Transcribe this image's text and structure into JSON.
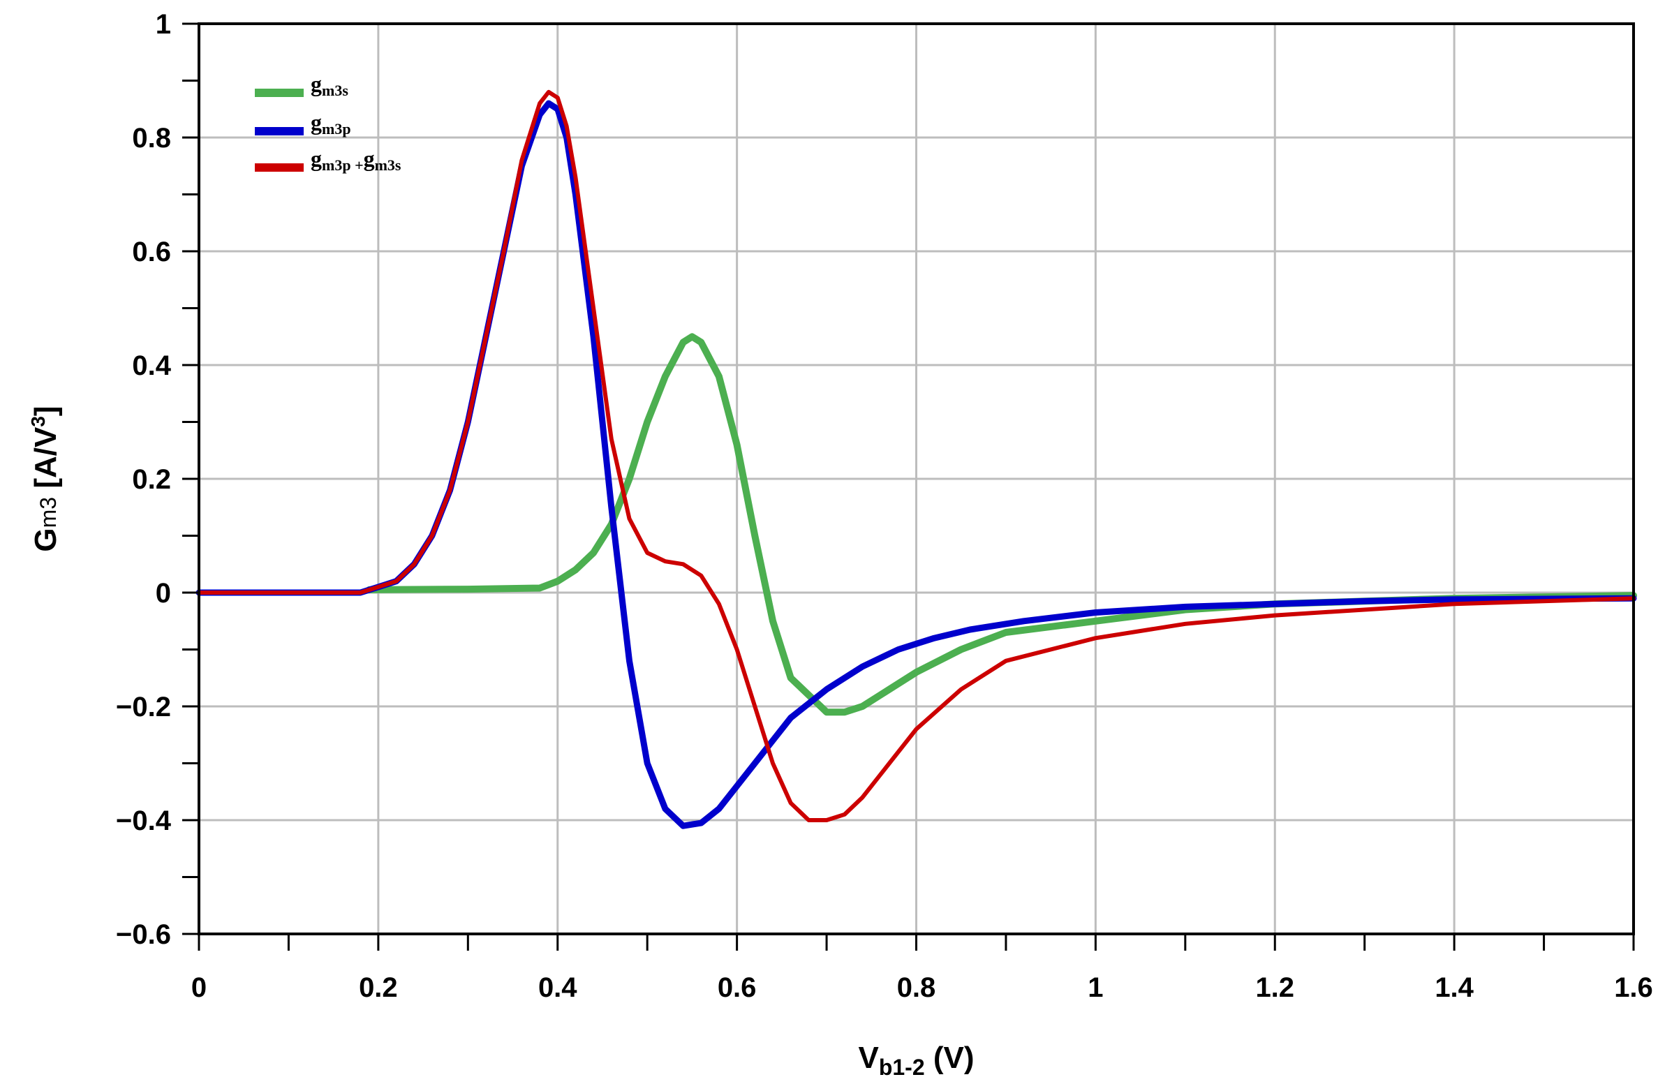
{
  "chart_data": {
    "type": "line",
    "title": "",
    "xlabel": {
      "main": "V",
      "sub": "b1-2",
      "suffix": " (V)"
    },
    "ylabel": {
      "main": "G",
      "sub": "m3",
      "suffix": " [A/V",
      "sup": "3",
      "end": "]"
    },
    "xlim": [
      0,
      1.6
    ],
    "ylim": [
      -0.6,
      1.0
    ],
    "x_ticks": [
      0,
      0.2,
      0.4,
      0.6,
      0.8,
      1.0,
      1.2,
      1.4,
      1.6
    ],
    "x_tick_labels": [
      "0",
      "0.2",
      "0.4",
      "0.6",
      "0.8",
      "1",
      "1.2",
      "1.4",
      "1.6"
    ],
    "y_ticks": [
      -0.6,
      -0.4,
      -0.2,
      0,
      0.2,
      0.4,
      0.6,
      0.8,
      1.0
    ],
    "y_tick_labels": [
      "−0.6",
      "−0.4",
      "−0.2",
      "0",
      "0.2",
      "0.4",
      "0.6",
      "0.8",
      "1"
    ],
    "grid": true,
    "legend_position": "top-left",
    "series": [
      {
        "name": "gm3s",
        "label_main": "g",
        "label_sub": "m3s",
        "color": "#4caf50",
        "x": [
          0.19,
          0.3,
          0.38,
          0.4,
          0.42,
          0.44,
          0.46,
          0.48,
          0.5,
          0.52,
          0.54,
          0.55,
          0.56,
          0.58,
          0.6,
          0.62,
          0.64,
          0.66,
          0.68,
          0.7,
          0.72,
          0.74,
          0.76,
          0.8,
          0.85,
          0.9,
          1.0,
          1.1,
          1.2,
          1.4,
          1.6
        ],
        "values": [
          0.005,
          0.006,
          0.008,
          0.02,
          0.04,
          0.07,
          0.12,
          0.2,
          0.3,
          0.38,
          0.44,
          0.45,
          0.44,
          0.38,
          0.26,
          0.1,
          -0.05,
          -0.15,
          -0.18,
          -0.21,
          -0.21,
          -0.2,
          -0.18,
          -0.14,
          -0.1,
          -0.07,
          -0.05,
          -0.03,
          -0.02,
          -0.01,
          -0.005
        ]
      },
      {
        "name": "gm3p",
        "label_main": "g",
        "label_sub": "m3p",
        "color": "#0000cc",
        "x": [
          0.0,
          0.18,
          0.2,
          0.22,
          0.24,
          0.26,
          0.28,
          0.3,
          0.32,
          0.34,
          0.36,
          0.38,
          0.39,
          0.4,
          0.41,
          0.42,
          0.44,
          0.46,
          0.48,
          0.5,
          0.52,
          0.54,
          0.56,
          0.58,
          0.6,
          0.62,
          0.64,
          0.66,
          0.7,
          0.74,
          0.78,
          0.82,
          0.86,
          0.92,
          1.0,
          1.1,
          1.2,
          1.3,
          1.4,
          1.6
        ],
        "values": [
          0,
          0,
          0.01,
          0.02,
          0.05,
          0.1,
          0.18,
          0.3,
          0.45,
          0.6,
          0.75,
          0.84,
          0.86,
          0.85,
          0.8,
          0.7,
          0.45,
          0.15,
          -0.12,
          -0.3,
          -0.38,
          -0.41,
          -0.405,
          -0.38,
          -0.34,
          -0.3,
          -0.26,
          -0.22,
          -0.17,
          -0.13,
          -0.1,
          -0.08,
          -0.065,
          -0.05,
          -0.035,
          -0.025,
          -0.02,
          -0.015,
          -0.012,
          -0.01
        ]
      },
      {
        "name": "gm3p+gm3s",
        "label_main": "g",
        "label_sub": "m3p",
        "label_sep": " +",
        "label_main2": "g",
        "label_sub2": "m3s",
        "color": "#cc0000",
        "x": [
          0.0,
          0.18,
          0.2,
          0.22,
          0.24,
          0.26,
          0.28,
          0.3,
          0.32,
          0.34,
          0.36,
          0.38,
          0.39,
          0.4,
          0.41,
          0.42,
          0.44,
          0.46,
          0.48,
          0.5,
          0.52,
          0.54,
          0.56,
          0.58,
          0.6,
          0.62,
          0.64,
          0.66,
          0.68,
          0.7,
          0.72,
          0.74,
          0.76,
          0.8,
          0.85,
          0.9,
          1.0,
          1.1,
          1.2,
          1.4,
          1.6
        ],
        "values": [
          0,
          0,
          0.01,
          0.02,
          0.05,
          0.1,
          0.18,
          0.3,
          0.45,
          0.6,
          0.76,
          0.86,
          0.88,
          0.87,
          0.82,
          0.73,
          0.5,
          0.27,
          0.13,
          0.07,
          0.055,
          0.05,
          0.03,
          -0.02,
          -0.1,
          -0.2,
          -0.3,
          -0.37,
          -0.4,
          -0.4,
          -0.39,
          -0.36,
          -0.32,
          -0.24,
          -0.17,
          -0.12,
          -0.08,
          -0.055,
          -0.04,
          -0.02,
          -0.01
        ]
      }
    ]
  }
}
